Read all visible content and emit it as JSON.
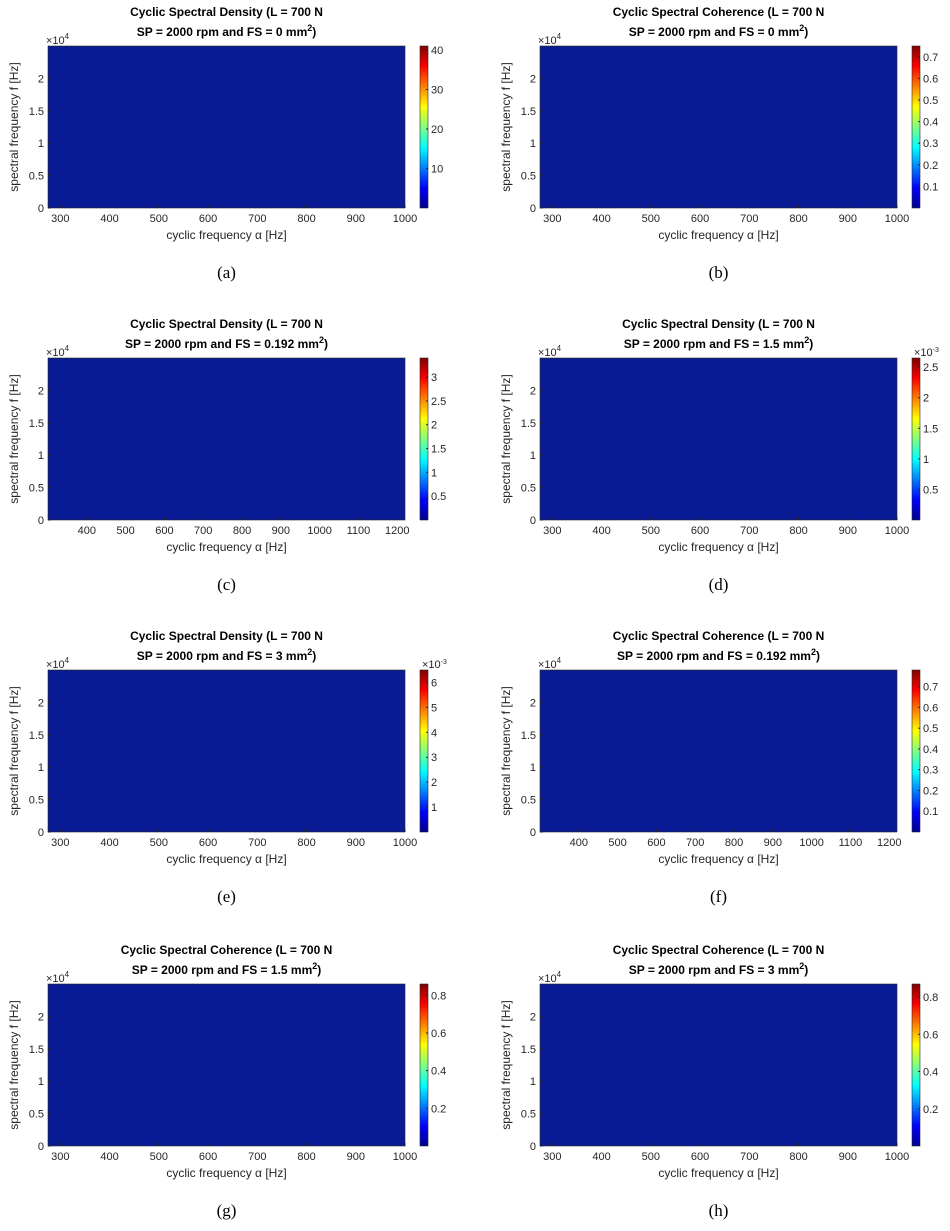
{
  "chart_data": [
    {
      "type": "heatmap",
      "title": "Cyclic Spectral Density (L = 700 N",
      "subtitle": "SP = 2000 rpm and FS = 0 mm",
      "subtitle_sup": "2",
      "subtitle_end": ")",
      "caption": "(a)",
      "xlabel": "cyclic frequency α [Hz]",
      "ylabel": "spectral frequency f [Hz]",
      "xlim": [
        275,
        1000
      ],
      "xticks": [
        300,
        400,
        500,
        600,
        700,
        800,
        900,
        1000
      ],
      "ylim": [
        0,
        25000
      ],
      "yticks": [
        {
          "value": 0,
          "label": "0"
        },
        {
          "value": 5000,
          "label": "0.5"
        },
        {
          "value": 10000,
          "label": "1"
        },
        {
          "value": 15000,
          "label": "1.5"
        },
        {
          "value": 20000,
          "label": "2"
        }
      ],
      "y_exponent": {
        "base": "×10",
        "power": "4"
      },
      "clim": [
        0,
        41
      ],
      "cticks": [
        10,
        20,
        30,
        40
      ],
      "colormap": "jet"
    },
    {
      "type": "heatmap",
      "title": "Cyclic Spectral Coherence (L = 700 N",
      "subtitle": "SP = 2000 rpm and FS = 0 mm",
      "subtitle_sup": "2",
      "subtitle_end": ")",
      "caption": "(b)",
      "xlabel": "cyclic frequency α [Hz]",
      "ylabel": "spectral frequency f [Hz]",
      "xlim": [
        275,
        1000
      ],
      "xticks": [
        300,
        400,
        500,
        600,
        700,
        800,
        900,
        1000
      ],
      "ylim": [
        0,
        25000
      ],
      "yticks": [
        {
          "value": 0,
          "label": "0"
        },
        {
          "value": 5000,
          "label": "0.5"
        },
        {
          "value": 10000,
          "label": "1"
        },
        {
          "value": 15000,
          "label": "1.5"
        },
        {
          "value": 20000,
          "label": "2"
        }
      ],
      "y_exponent": {
        "base": "×10",
        "power": "4"
      },
      "clim": [
        0,
        0.75
      ],
      "cticks": [
        0.1,
        0.2,
        0.3,
        0.4,
        0.5,
        0.6,
        0.7
      ],
      "colormap": "jet"
    },
    {
      "type": "heatmap",
      "title": "Cyclic Spectral Density (L = 700 N",
      "subtitle": "SP = 2000 rpm and FS = 0.192 mm",
      "subtitle_sup": "2",
      "subtitle_end": ")",
      "caption": "(c)",
      "xlabel": "cyclic frequency α [Hz]",
      "ylabel": "spectral frequency f [Hz]",
      "xlim": [
        300,
        1220
      ],
      "xticks": [
        400,
        500,
        600,
        700,
        800,
        900,
        1000,
        1100,
        1200
      ],
      "ylim": [
        0,
        25000
      ],
      "yticks": [
        {
          "value": 0,
          "label": "0"
        },
        {
          "value": 5000,
          "label": "0.5"
        },
        {
          "value": 10000,
          "label": "1"
        },
        {
          "value": 15000,
          "label": "1.5"
        },
        {
          "value": 20000,
          "label": "2"
        }
      ],
      "y_exponent": {
        "base": "×10",
        "power": "4"
      },
      "clim": [
        0,
        3.4
      ],
      "cticks": [
        0.5,
        1,
        1.5,
        2,
        2.5,
        3
      ],
      "colormap": "jet"
    },
    {
      "type": "heatmap",
      "title": "Cyclic Spectral Density (L = 700 N",
      "subtitle": "SP = 2000 rpm and FS = 1.5 mm",
      "subtitle_sup": "2",
      "subtitle_end": ")",
      "caption": "(d)",
      "xlabel": "cyclic frequency α [Hz]",
      "ylabel": "spectral frequency f [Hz]",
      "xlim": [
        275,
        1000
      ],
      "xticks": [
        300,
        400,
        500,
        600,
        700,
        800,
        900,
        1000
      ],
      "ylim": [
        0,
        25000
      ],
      "yticks": [
        {
          "value": 0,
          "label": "0"
        },
        {
          "value": 5000,
          "label": "0.5"
        },
        {
          "value": 10000,
          "label": "1"
        },
        {
          "value": 15000,
          "label": "1.5"
        },
        {
          "value": 20000,
          "label": "2"
        }
      ],
      "y_exponent": {
        "base": "×10",
        "power": "4"
      },
      "clim": [
        0,
        0.00265
      ],
      "cticks": [
        {
          "value": 0.0005,
          "label": "0.5"
        },
        {
          "value": 0.001,
          "label": "1"
        },
        {
          "value": 0.0015,
          "label": "1.5"
        },
        {
          "value": 0.002,
          "label": "2"
        },
        {
          "value": 0.0025,
          "label": "2.5"
        }
      ],
      "c_exponent": {
        "base": "×10",
        "power": "-3"
      },
      "colormap": "jet"
    },
    {
      "type": "heatmap",
      "title": "Cyclic Spectral Density (L = 700 N",
      "subtitle": "SP = 2000 rpm and FS = 3 mm",
      "subtitle_sup": "2",
      "subtitle_end": ")",
      "caption": "(e)",
      "xlabel": "cyclic frequency α [Hz]",
      "ylabel": "spectral frequency f [Hz]",
      "xlim": [
        275,
        1000
      ],
      "xticks": [
        300,
        400,
        500,
        600,
        700,
        800,
        900,
        1000
      ],
      "ylim": [
        0,
        25000
      ],
      "yticks": [
        {
          "value": 0,
          "label": "0"
        },
        {
          "value": 5000,
          "label": "0.5"
        },
        {
          "value": 10000,
          "label": "1"
        },
        {
          "value": 15000,
          "label": "1.5"
        },
        {
          "value": 20000,
          "label": "2"
        }
      ],
      "y_exponent": {
        "base": "×10",
        "power": "4"
      },
      "clim": [
        0,
        0.0065
      ],
      "cticks": [
        {
          "value": 0.001,
          "label": "1"
        },
        {
          "value": 0.002,
          "label": "2"
        },
        {
          "value": 0.003,
          "label": "3"
        },
        {
          "value": 0.004,
          "label": "4"
        },
        {
          "value": 0.005,
          "label": "5"
        },
        {
          "value": 0.006,
          "label": "6"
        }
      ],
      "c_exponent": {
        "base": "×10",
        "power": "-3"
      },
      "colormap": "jet"
    },
    {
      "type": "heatmap",
      "title": "Cyclic Spectral Coherence (L = 700 N",
      "subtitle": "SP = 2000 rpm and FS = 0.192 mm",
      "subtitle_sup": "2",
      "subtitle_end": ")",
      "caption": "(f)",
      "xlabel": "cyclic frequency α [Hz]",
      "ylabel": "spectral frequency f [Hz]",
      "xlim": [
        300,
        1220
      ],
      "xticks": [
        400,
        500,
        600,
        700,
        800,
        900,
        1000,
        1100,
        1200
      ],
      "ylim": [
        0,
        25000
      ],
      "yticks": [
        {
          "value": 0,
          "label": "0"
        },
        {
          "value": 5000,
          "label": "0.5"
        },
        {
          "value": 10000,
          "label": "1"
        },
        {
          "value": 15000,
          "label": "1.5"
        },
        {
          "value": 20000,
          "label": "2"
        }
      ],
      "y_exponent": {
        "base": "×10",
        "power": "4"
      },
      "clim": [
        0,
        0.78
      ],
      "cticks": [
        0.1,
        0.2,
        0.3,
        0.4,
        0.5,
        0.6,
        0.7
      ],
      "colormap": "jet"
    },
    {
      "type": "heatmap",
      "title": "Cyclic Spectral Coherence (L = 700 N",
      "subtitle": "SP = 2000 rpm and FS = 1.5 mm",
      "subtitle_sup": "2",
      "subtitle_end": ")",
      "caption": "(g)",
      "xlabel": "cyclic frequency α [Hz]",
      "ylabel": "spectral frequency f [Hz]",
      "xlim": [
        275,
        1000
      ],
      "xticks": [
        300,
        400,
        500,
        600,
        700,
        800,
        900,
        1000
      ],
      "ylim": [
        0,
        25000
      ],
      "yticks": [
        {
          "value": 0,
          "label": "0"
        },
        {
          "value": 5000,
          "label": "0.5"
        },
        {
          "value": 10000,
          "label": "1"
        },
        {
          "value": 15000,
          "label": "1.5"
        },
        {
          "value": 20000,
          "label": "2"
        }
      ],
      "y_exponent": {
        "base": "×10",
        "power": "4"
      },
      "clim": [
        0,
        0.86
      ],
      "cticks": [
        0.2,
        0.4,
        0.6,
        0.8
      ],
      "colormap": "jet"
    },
    {
      "type": "heatmap",
      "title": "Cyclic Spectral Coherence (L = 700 N",
      "subtitle": "SP = 2000 rpm and FS = 3 mm",
      "subtitle_sup": "2",
      "subtitle_end": ")",
      "caption": "(h)",
      "xlabel": "cyclic frequency α [Hz]",
      "ylabel": "spectral frequency f [Hz]",
      "xlim": [
        275,
        1000
      ],
      "xticks": [
        300,
        400,
        500,
        600,
        700,
        800,
        900,
        1000
      ],
      "ylim": [
        0,
        25000
      ],
      "yticks": [
        {
          "value": 0,
          "label": "0"
        },
        {
          "value": 5000,
          "label": "0.5"
        },
        {
          "value": 10000,
          "label": "1"
        },
        {
          "value": 15000,
          "label": "1.5"
        },
        {
          "value": 20000,
          "label": "2"
        }
      ],
      "y_exponent": {
        "base": "×10",
        "power": "4"
      },
      "clim": [
        0,
        0.87
      ],
      "cticks": [
        0.2,
        0.4,
        0.6,
        0.8
      ],
      "colormap": "jet"
    }
  ]
}
